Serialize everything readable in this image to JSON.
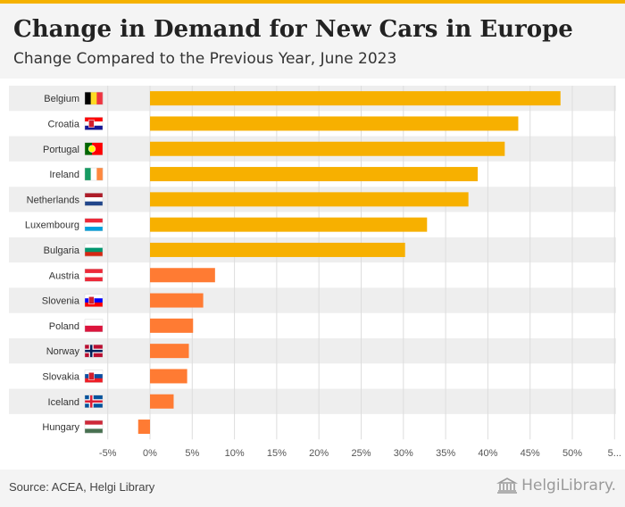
{
  "header": {
    "title": "Change in Demand for New Cars in Europe",
    "subtitle": "Change Compared to the Previous Year, June 2023"
  },
  "footer": {
    "source": "Source: ACEA, Helgi Library",
    "logo_text": "HelgiLibrary."
  },
  "chart_data": {
    "type": "bar",
    "orientation": "horizontal",
    "title": "Change in Demand for New Cars in Europe",
    "subtitle": "Change Compared to the Previous Year, June 2023",
    "categories": [
      "Belgium",
      "Croatia",
      "Portugal",
      "Ireland",
      "Netherlands",
      "Luxembourg",
      "Bulgaria",
      "Austria",
      "Slovenia",
      "Poland",
      "Norway",
      "Slovakia",
      "Iceland",
      "Hungary"
    ],
    "values": [
      48.6,
      43.6,
      42.0,
      38.8,
      37.7,
      32.8,
      30.2,
      7.7,
      6.3,
      5.1,
      4.6,
      4.4,
      2.8,
      -1.4
    ],
    "tick_labels": [
      "-5%",
      "0%",
      "5%",
      "10%",
      "15%",
      "20%",
      "25%",
      "30%",
      "35%",
      "40%",
      "45%",
      "50%",
      "5..."
    ],
    "xlim": [
      -5,
      55
    ],
    "grid": true,
    "colors": {
      "high": "#f7b000",
      "low": "#ff7b33",
      "row_alt": "#eeeeee",
      "grid": "#dddddd"
    },
    "flags": {
      "Belgium": {
        "type": "v",
        "colors": [
          "#000000",
          "#fdda24",
          "#ef3340"
        ]
      },
      "Croatia": {
        "type": "h",
        "colors": [
          "#ff0000",
          "#ffffff",
          "#171796"
        ],
        "emblem": true
      },
      "Portugal": {
        "type": "portugal",
        "colors": [
          "#006600",
          "#ff0000"
        ]
      },
      "Ireland": {
        "type": "v",
        "colors": [
          "#169b62",
          "#ffffff",
          "#ff883e"
        ]
      },
      "Netherlands": {
        "type": "h",
        "colors": [
          "#ae1c28",
          "#ffffff",
          "#21468b"
        ]
      },
      "Luxembourg": {
        "type": "h",
        "colors": [
          "#ed2939",
          "#ffffff",
          "#00a1de"
        ]
      },
      "Bulgaria": {
        "type": "h",
        "colors": [
          "#ffffff",
          "#00966e",
          "#d62612"
        ]
      },
      "Austria": {
        "type": "h",
        "colors": [
          "#ed2939",
          "#ffffff",
          "#ed2939"
        ]
      },
      "Slovenia": {
        "type": "h",
        "colors": [
          "#ffffff",
          "#0000ff",
          "#ff0000"
        ],
        "emblem": true
      },
      "Poland": {
        "type": "h2",
        "colors": [
          "#ffffff",
          "#dc143c"
        ]
      },
      "Norway": {
        "type": "nordic",
        "colors": [
          "#ba0c2f",
          "#ffffff",
          "#00205b"
        ]
      },
      "Slovakia": {
        "type": "h",
        "colors": [
          "#ffffff",
          "#0b4ea2",
          "#ee1c25"
        ],
        "emblem": true
      },
      "Iceland": {
        "type": "nordic",
        "colors": [
          "#02529c",
          "#ffffff",
          "#dc1e35"
        ]
      },
      "Hungary": {
        "type": "h",
        "colors": [
          "#ce2939",
          "#ffffff",
          "#477050"
        ]
      }
    }
  }
}
